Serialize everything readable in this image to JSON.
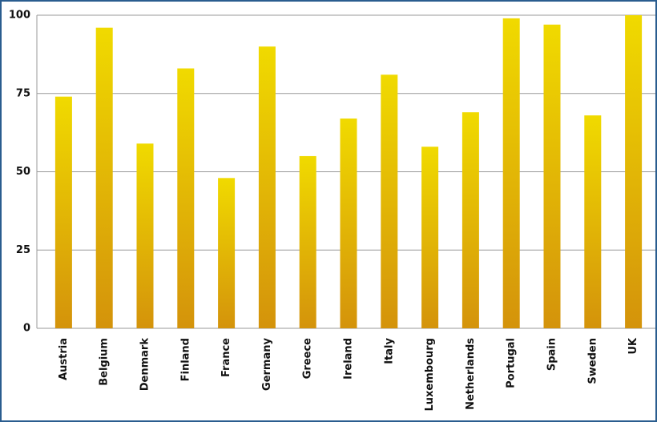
{
  "chart_data": {
    "type": "bar",
    "categories": [
      "Austria",
      "Belgium",
      "Denmark",
      "Finland",
      "France",
      "Germany",
      "Greece",
      "Ireland",
      "Italy",
      "Luxembourg",
      "Netherlands",
      "Portugal",
      "Spain",
      "Sweden",
      "UK"
    ],
    "values": [
      74,
      96,
      59,
      83,
      48,
      90,
      55,
      67,
      81,
      58,
      69,
      99,
      97,
      68,
      100
    ],
    "gradient": [
      "#f0da00",
      "#d4930b"
    ],
    "ylim": [
      0,
      100
    ],
    "yticks": [
      0,
      25,
      50,
      75,
      100
    ],
    "grid": true
  }
}
